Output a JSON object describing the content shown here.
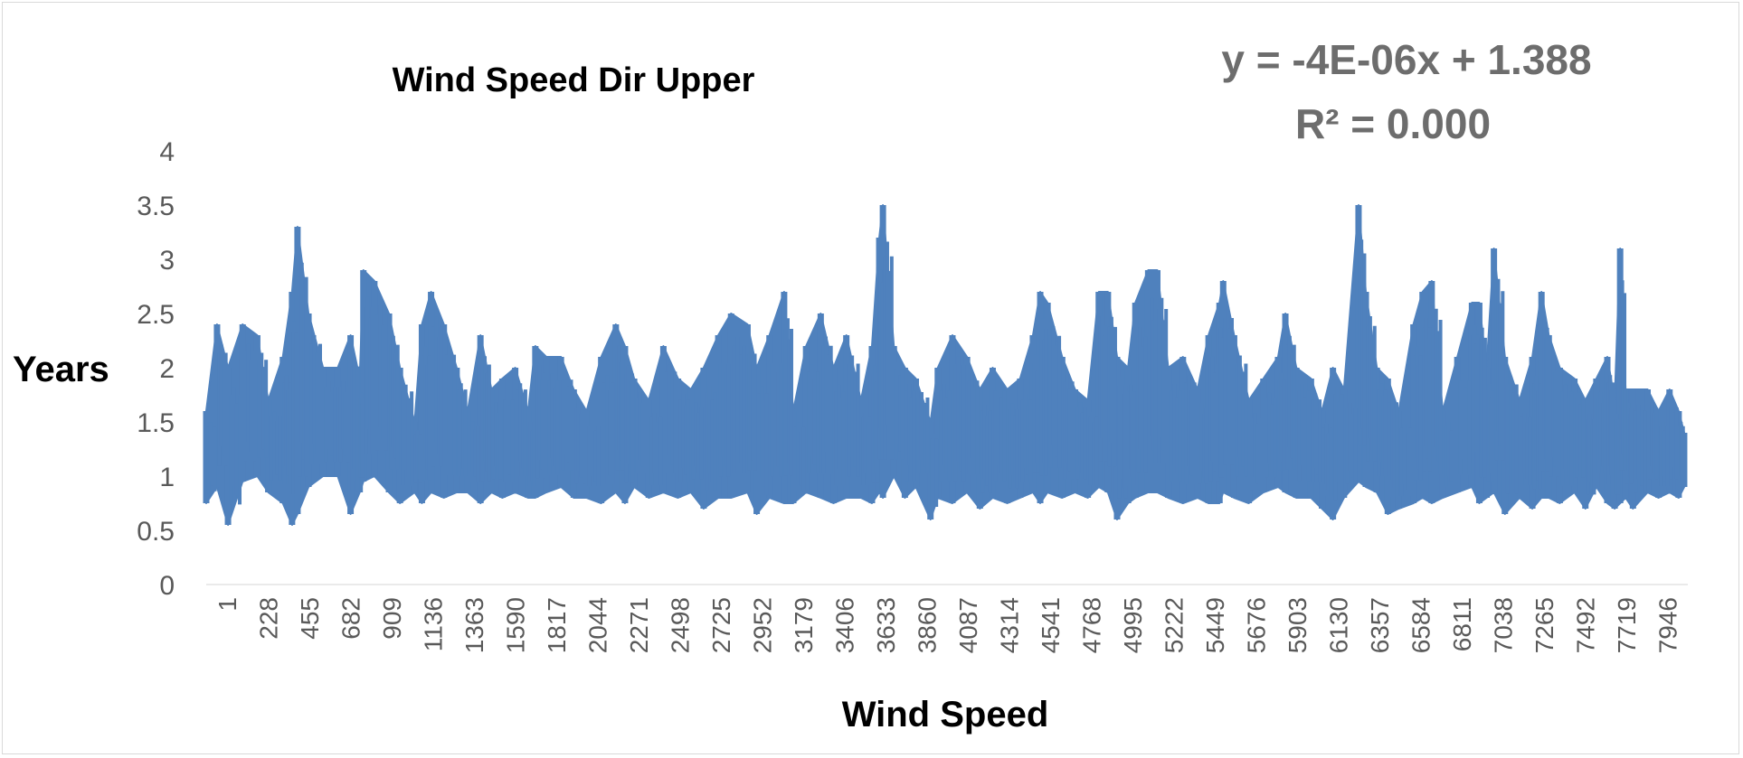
{
  "chart_data": {
    "type": "line",
    "title": "Wind Speed Dir Upper",
    "xlabel": "Wind Speed",
    "ylabel": "Years",
    "ylim": [
      0,
      4
    ],
    "yticks": [
      0,
      0.5,
      1,
      1.5,
      2,
      2.5,
      3,
      3.5,
      4
    ],
    "ytick_labels": [
      "0",
      "0.5",
      "1",
      "1.5",
      "2",
      "2.5",
      "3",
      "3.5",
      "4"
    ],
    "xlim": [
      1,
      8100
    ],
    "xtick_labels": [
      "1",
      "228",
      "455",
      "682",
      "909",
      "1136",
      "1363",
      "1590",
      "1817",
      "2044",
      "2271",
      "2498",
      "2725",
      "2952",
      "3179",
      "3406",
      "3633",
      "3860",
      "4087",
      "4314",
      "4541",
      "4768",
      "4995",
      "5222",
      "5449",
      "5676",
      "5903",
      "6130",
      "6357",
      "6584",
      "6811",
      "7038",
      "7265",
      "7492",
      "7719",
      "7946"
    ],
    "series_color": "#4f81bd",
    "series": [
      {
        "name": "Wind Speed Dir Upper",
        "x": [
          1,
          60,
          120,
          200,
          280,
          340,
          420,
          470,
          500,
          560,
          640,
          720,
          790,
          840,
          860,
          920,
          1000,
          1060,
          1140,
          1180,
          1230,
          1300,
          1370,
          1430,
          1500,
          1560,
          1620,
          1690,
          1760,
          1800,
          1860,
          1940,
          2010,
          2080,
          2160,
          2240,
          2290,
          2340,
          2420,
          2500,
          2580,
          2650,
          2720,
          2800,
          2870,
          2960,
          3010,
          3080,
          3160,
          3210,
          3280,
          3360,
          3430,
          3500,
          3580,
          3640,
          3680,
          3700,
          3760,
          3820,
          3880,
          3960,
          4000,
          4080,
          4160,
          4230,
          4300,
          4380,
          4450,
          4520,
          4560,
          4600,
          4680,
          4750,
          4820,
          4880,
          4930,
          4980,
          5040,
          5080,
          5150,
          5200,
          5260,
          5340,
          5420,
          5480,
          5540,
          5560,
          5620,
          5700,
          5780,
          5860,
          5900,
          5960,
          6040,
          6100,
          6160,
          6220,
          6300,
          6340,
          6400,
          6460,
          6520,
          6600,
          6650,
          6700,
          6760,
          6840,
          6920,
          6960,
          7000,
          7040,
          7100,
          7180,
          7250,
          7300,
          7340,
          7400,
          7480,
          7540,
          7600,
          7660,
          7700,
          7730,
          7760,
          7800,
          7880,
          7940,
          8000,
          8050,
          8080
        ],
        "upper": [
          1.6,
          2.4,
          2.0,
          2.4,
          2.3,
          1.7,
          2.1,
          2.7,
          3.3,
          2.5,
          2.0,
          2.0,
          2.3,
          1.9,
          2.9,
          2.8,
          2.5,
          2.0,
          1.5,
          2.4,
          2.7,
          2.4,
          2.0,
          1.6,
          2.3,
          1.8,
          1.9,
          2.0,
          1.6,
          2.2,
          2.1,
          2.1,
          1.8,
          1.6,
          2.1,
          2.4,
          2.2,
          1.9,
          1.7,
          2.2,
          1.9,
          1.8,
          2.0,
          2.3,
          2.5,
          2.4,
          2.0,
          2.3,
          2.7,
          1.6,
          2.2,
          2.5,
          2.0,
          2.3,
          1.7,
          2.2,
          3.2,
          3.5,
          2.2,
          2.0,
          1.9,
          1.5,
          2.0,
          2.3,
          2.1,
          1.8,
          2.0,
          1.8,
          1.9,
          2.3,
          2.7,
          2.6,
          2.1,
          1.8,
          1.7,
          2.7,
          2.7,
          2.1,
          2.0,
          2.6,
          2.9,
          2.9,
          2.0,
          2.1,
          1.8,
          2.3,
          2.6,
          2.8,
          2.3,
          1.7,
          1.9,
          2.1,
          2.5,
          2.0,
          1.9,
          1.6,
          2.0,
          1.8,
          3.5,
          2.7,
          2.0,
          1.9,
          1.6,
          2.4,
          2.7,
          2.8,
          1.6,
          2.1,
          2.6,
          2.6,
          2.0,
          3.1,
          2.1,
          1.7,
          2.1,
          2.7,
          2.3,
          2.0,
          1.9,
          1.7,
          1.9,
          2.1,
          1.7,
          3.1,
          1.8,
          1.8,
          1.8,
          1.6,
          1.8,
          1.6,
          1.4
        ],
        "lower": [
          0.75,
          0.9,
          0.55,
          0.95,
          1.0,
          0.85,
          0.75,
          0.55,
          0.65,
          0.9,
          1.0,
          1.0,
          0.65,
          0.85,
          0.95,
          1.0,
          0.85,
          0.75,
          0.85,
          0.75,
          0.85,
          0.8,
          0.85,
          0.85,
          0.75,
          0.85,
          0.8,
          0.85,
          0.8,
          0.8,
          0.85,
          0.9,
          0.8,
          0.8,
          0.75,
          0.85,
          0.75,
          0.9,
          0.8,
          0.85,
          0.8,
          0.85,
          0.7,
          0.8,
          0.8,
          0.85,
          0.65,
          0.8,
          0.75,
          0.75,
          0.85,
          0.8,
          0.75,
          0.8,
          0.8,
          0.75,
          0.85,
          0.8,
          1.0,
          0.8,
          0.9,
          0.6,
          0.8,
          0.75,
          0.85,
          0.7,
          0.8,
          0.75,
          0.8,
          0.85,
          0.75,
          0.85,
          0.8,
          0.85,
          0.8,
          0.9,
          0.85,
          0.6,
          0.75,
          0.8,
          0.85,
          0.85,
          0.8,
          0.75,
          0.8,
          0.75,
          0.75,
          0.85,
          0.8,
          0.75,
          0.85,
          0.9,
          0.85,
          0.8,
          0.8,
          0.7,
          0.6,
          0.8,
          0.95,
          0.9,
          0.85,
          0.65,
          0.7,
          0.75,
          0.8,
          0.75,
          0.8,
          0.85,
          0.9,
          0.75,
          0.8,
          0.85,
          0.65,
          0.8,
          0.7,
          0.8,
          0.8,
          0.75,
          0.85,
          0.7,
          0.9,
          0.75,
          0.7,
          0.75,
          0.8,
          0.7,
          0.85,
          0.8,
          0.85,
          0.8,
          0.9
        ]
      }
    ],
    "trendline": {
      "equation": "y = -4E-06x + 1.388",
      "r_squared": "R² = 0.000"
    }
  }
}
